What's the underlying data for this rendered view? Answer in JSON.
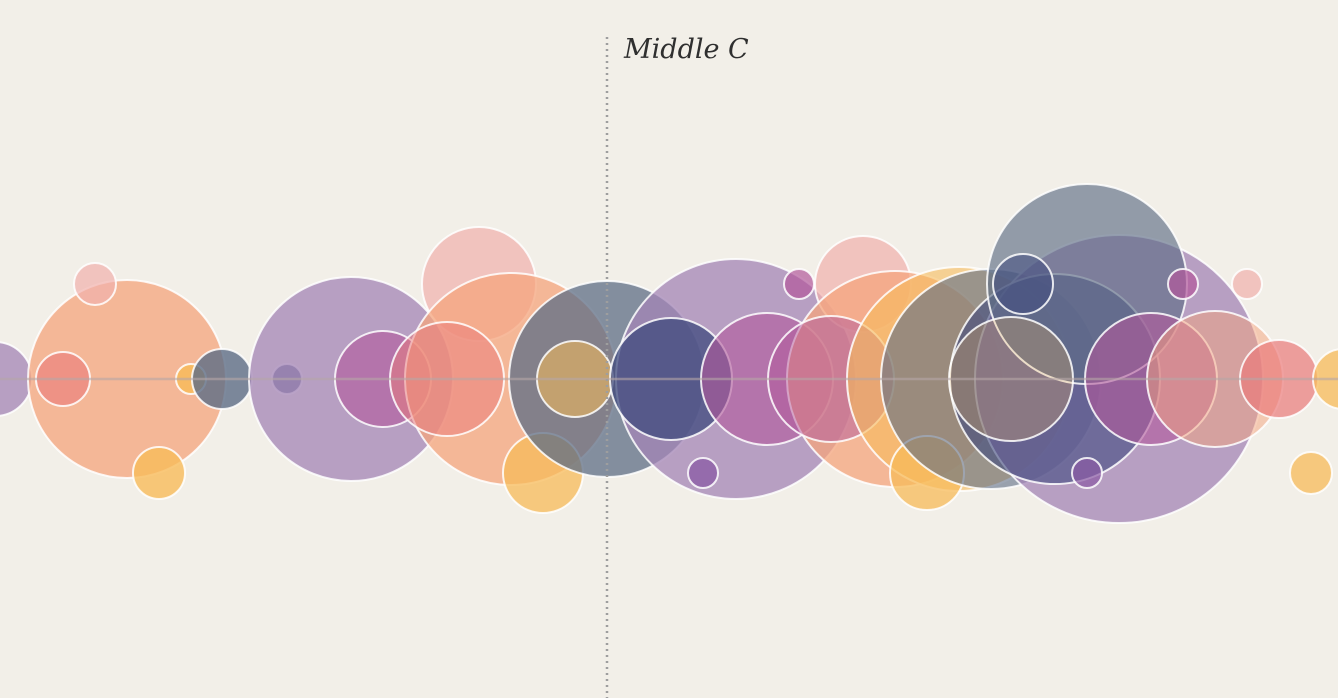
{
  "label": {
    "text": "Middle C"
  },
  "colors": {
    "background": "#f2efe8",
    "stroke": "#ffffff",
    "centerline": "#b5a6a6",
    "marker": "#9e9e9e",
    "label_text": "#2f2f2f",
    "purple": "#a384b6",
    "salmon": "#f4a47c",
    "pink": "#f1b0ad",
    "orange": "#f7bb5a",
    "slate": "#5d6d86",
    "navy": "#3f4a7e",
    "violet": "#8a5aa4",
    "magenta": "#b2589b",
    "coral": "#e97a7a"
  },
  "legend": {
    "visible": false
  },
  "marks_note_hidden": "",
  "circles": [
    {
      "color": "purple"
    },
    {
      "color": "salmon"
    },
    {
      "color": "coral"
    },
    {
      "color": "pink"
    },
    {
      "color": "orange"
    },
    {
      "color": "orange"
    },
    {
      "color": "slate"
    },
    {
      "color": "navy"
    },
    {
      "color": "purple"
    },
    {
      "color": "magenta"
    },
    {
      "color": "pink"
    },
    {
      "color": "salmon"
    },
    {
      "color": "coral"
    },
    {
      "color": "orange"
    },
    {
      "color": "slate"
    },
    {
      "color": "orange"
    },
    {
      "color": "purple"
    },
    {
      "color": "navy"
    },
    {
      "color": "violet"
    },
    {
      "color": "magenta"
    },
    {
      "color": "magenta"
    },
    {
      "color": "pink"
    },
    {
      "color": "salmon"
    },
    {
      "color": "magenta"
    },
    {
      "color": "orange"
    },
    {
      "color": "orange"
    },
    {
      "color": "slate"
    },
    {
      "color": "purple"
    },
    {
      "color": "navy"
    },
    {
      "color": "slate"
    },
    {
      "color": "navy"
    },
    {
      "color": "orange"
    },
    {
      "color": "violet"
    },
    {
      "color": "magenta"
    },
    {
      "color": "magenta"
    },
    {
      "color": "pink"
    },
    {
      "color": "salmon"
    },
    {
      "color": "coral"
    },
    {
      "color": "orange"
    },
    {
      "color": "orange"
    }
  ]
}
